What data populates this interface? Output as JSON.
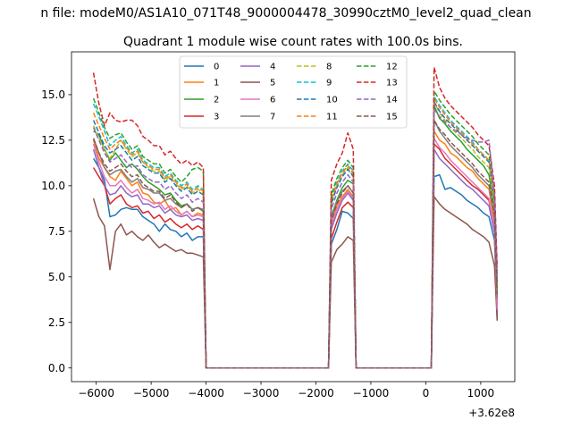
{
  "chart_data": {
    "type": "line",
    "suptitle": "n file: modeM0/AS1A10_071T48_9000004478_30990cztM0_level2_quad_clean",
    "title": "Quadrant 1 module wise count rates with 100.0s bins.",
    "xlabel": "",
    "ylabel": "",
    "x_offset_label": "+3.62e8",
    "xlim": [
      -6450,
      1620
    ],
    "ylim": [
      -0.75,
      17.35
    ],
    "x_ticks": [
      -6000,
      -5000,
      -4000,
      -3000,
      -2000,
      -1000,
      0,
      1000
    ],
    "x_tick_labels": [
      "−6000",
      "−5000",
      "−4000",
      "−3000",
      "−2000",
      "−1000",
      "0",
      "1000"
    ],
    "y_ticks": [
      0,
      2.5,
      5,
      7.5,
      10,
      12.5,
      15
    ],
    "y_tick_labels": [
      "0.0",
      "2.5",
      "5.0",
      "7.5",
      "10.0",
      "12.5",
      "15.0"
    ],
    "grid": false,
    "legend_position": "top-center",
    "legend_columns": 4,
    "segments": [
      {
        "start": -6050,
        "end": -4050,
        "bins": 21
      },
      {
        "start": -1720,
        "end": -1320,
        "bins": 5
      },
      {
        "start": 150,
        "end": 1250,
        "bins": 12
      }
    ],
    "series": [
      {
        "name": "0",
        "color": "#1f77b4",
        "dash": "solid",
        "values": [
          [
            11.5,
            11.0,
            10.3,
            8.3,
            8.4,
            8.7,
            8.8,
            8.7,
            8.7,
            8.3,
            8.1,
            7.9,
            7.5,
            7.9,
            7.6,
            7.5,
            7.2,
            7.4,
            7.0,
            7.2,
            7.2
          ],
          [
            6.8,
            7.6,
            8.6,
            8.5,
            8.2
          ],
          [
            10.5,
            10.6,
            9.8,
            9.9,
            9.7,
            9.5,
            9.2,
            9.0,
            8.8,
            8.5,
            8.3,
            7.0
          ]
        ]
      },
      {
        "name": "1",
        "color": "#ff7f0e",
        "dash": "solid",
        "values": [
          [
            12.5,
            11.5,
            11.0,
            10.5,
            10.3,
            10.8,
            10.4,
            10.0,
            10.2,
            9.6,
            9.5,
            9.1,
            9.0,
            9.2,
            8.7,
            8.8,
            8.4,
            8.6,
            8.3,
            8.5,
            8.4
          ],
          [
            7.9,
            8.9,
            9.4,
            9.8,
            9.4
          ],
          [
            13.0,
            12.5,
            12.3,
            11.8,
            11.6,
            11.3,
            11.0,
            10.8,
            10.4,
            10.1,
            9.8,
            8.0
          ]
        ]
      },
      {
        "name": "2",
        "color": "#2ca02c",
        "dash": "solid",
        "values": [
          [
            13.0,
            12.8,
            12.0,
            11.4,
            11.8,
            11.4,
            11.0,
            11.2,
            10.9,
            10.5,
            10.2,
            10.0,
            9.8,
            9.5,
            9.6,
            9.2,
            8.9,
            9.0,
            8.7,
            8.8,
            8.6
          ],
          [
            8.3,
            9.2,
            9.9,
            10.3,
            10.1
          ],
          [
            14.4,
            13.7,
            13.4,
            13.0,
            12.7,
            12.4,
            12.0,
            11.7,
            11.4,
            11.1,
            10.6,
            8.8
          ]
        ]
      },
      {
        "name": "3",
        "color": "#d62728",
        "dash": "solid",
        "values": [
          [
            11.0,
            10.5,
            10.0,
            9.0,
            9.3,
            9.5,
            9.0,
            8.8,
            8.9,
            8.5,
            8.6,
            8.2,
            8.4,
            8.0,
            8.2,
            7.9,
            7.7,
            7.9,
            7.6,
            7.8,
            7.6
          ],
          [
            7.1,
            8.0,
            8.8,
            9.1,
            8.8
          ],
          [
            12.3,
            12.0,
            11.5,
            11.2,
            10.9,
            10.6,
            10.3,
            10.0,
            9.8,
            9.5,
            9.2,
            7.6
          ]
        ]
      },
      {
        "name": "4",
        "color": "#9467bd",
        "dash": "solid",
        "values": [
          [
            12.0,
            11.0,
            10.0,
            9.5,
            9.6,
            10.0,
            9.6,
            9.4,
            9.5,
            9.0,
            9.0,
            8.8,
            8.9,
            8.5,
            8.7,
            8.4,
            8.3,
            8.4,
            8.1,
            8.2,
            8.1
          ],
          [
            7.6,
            8.5,
            9.2,
            9.6,
            9.2
          ],
          [
            12.0,
            11.5,
            11.2,
            10.9,
            10.6,
            10.3,
            10.0,
            9.8,
            9.5,
            9.2,
            8.9,
            7.4
          ]
        ]
      },
      {
        "name": "5",
        "color": "#8c564b",
        "dash": "solid",
        "values": [
          [
            9.3,
            8.3,
            7.8,
            5.4,
            7.5,
            7.9,
            7.3,
            7.5,
            7.2,
            7.0,
            7.3,
            6.9,
            6.6,
            6.8,
            6.6,
            6.4,
            6.5,
            6.3,
            6.3,
            6.2,
            6.1
          ],
          [
            5.8,
            6.5,
            6.8,
            7.2,
            7.0
          ],
          [
            9.4,
            9.0,
            8.7,
            8.5,
            8.3,
            8.1,
            7.9,
            7.6,
            7.4,
            7.2,
            6.9,
            5.6
          ]
        ]
      },
      {
        "name": "6",
        "color": "#e377c2",
        "dash": "solid",
        "values": [
          [
            12.3,
            11.3,
            10.5,
            10.0,
            10.0,
            10.3,
            9.9,
            9.6,
            9.8,
            9.3,
            9.2,
            9.0,
            9.1,
            8.7,
            8.9,
            8.6,
            8.4,
            8.6,
            8.3,
            8.4,
            8.3
          ],
          [
            7.8,
            8.7,
            9.3,
            9.7,
            9.3
          ],
          [
            12.6,
            12.1,
            11.8,
            11.4,
            11.1,
            10.8,
            10.5,
            10.2,
            9.9,
            9.6,
            9.3,
            7.7
          ]
        ]
      },
      {
        "name": "7",
        "color": "#7f7f7f",
        "dash": "solid",
        "values": [
          [
            12.6,
            11.8,
            11.0,
            10.6,
            10.8,
            10.9,
            10.5,
            10.2,
            10.4,
            9.9,
            9.8,
            9.6,
            9.6,
            9.2,
            9.3,
            9.0,
            8.8,
            9.0,
            8.7,
            8.8,
            8.7
          ],
          [
            8.2,
            9.1,
            9.7,
            10.0,
            9.6
          ],
          [
            13.6,
            13.0,
            12.6,
            12.2,
            11.9,
            11.6,
            11.3,
            11.0,
            10.6,
            10.3,
            10.0,
            8.3
          ]
        ]
      },
      {
        "name": "8",
        "color": "#bcbd22",
        "dash": "dashed",
        "values": [
          [
            13.3,
            12.6,
            12.0,
            11.5,
            12.0,
            12.5,
            12.0,
            11.6,
            11.8,
            11.3,
            11.0,
            10.8,
            10.8,
            10.3,
            10.5,
            10.1,
            9.8,
            10.0,
            9.6,
            9.8,
            9.6
          ],
          [
            9.1,
            10.0,
            10.6,
            11.0,
            10.6
          ],
          [
            14.6,
            14.0,
            13.6,
            13.2,
            12.9,
            12.6,
            12.3,
            12.0,
            11.6,
            11.3,
            11.0,
            9.0
          ]
        ]
      },
      {
        "name": "9",
        "color": "#17becf",
        "dash": "dashed",
        "values": [
          [
            14.5,
            13.8,
            13.0,
            12.2,
            12.5,
            12.7,
            12.2,
            11.8,
            12.0,
            11.4,
            11.2,
            11.0,
            11.0,
            10.5,
            10.7,
            10.3,
            10.0,
            10.2,
            9.8,
            10.0,
            9.8
          ],
          [
            9.3,
            10.2,
            10.8,
            11.2,
            10.8
          ],
          [
            14.9,
            14.4,
            14.0,
            13.6,
            13.3,
            13.0,
            12.7,
            12.4,
            12.0,
            11.7,
            11.4,
            9.3
          ]
        ]
      },
      {
        "name": "10",
        "color": "#1f77b4",
        "dash": "dashed",
        "values": [
          [
            13.6,
            12.9,
            12.2,
            11.8,
            12.0,
            12.2,
            11.8,
            11.4,
            11.6,
            11.1,
            10.9,
            10.7,
            10.7,
            10.2,
            10.4,
            10.0,
            9.7,
            9.9,
            9.5,
            9.7,
            9.5
          ],
          [
            9.0,
            9.9,
            10.5,
            10.9,
            10.5
          ],
          [
            14.6,
            14.1,
            13.7,
            13.4,
            13.1,
            12.8,
            12.5,
            12.2,
            11.9,
            11.6,
            11.3,
            9.2
          ]
        ]
      },
      {
        "name": "11",
        "color": "#ff7f0e",
        "dash": "dashed",
        "values": [
          [
            14.0,
            13.3,
            12.6,
            12.0,
            12.3,
            12.5,
            12.1,
            11.7,
            11.9,
            11.3,
            11.1,
            10.9,
            10.9,
            10.4,
            10.6,
            10.2,
            9.9,
            10.1,
            9.7,
            9.9,
            9.7
          ],
          [
            9.2,
            10.1,
            10.7,
            11.1,
            10.7
          ],
          [
            14.8,
            14.3,
            13.9,
            13.5,
            13.2,
            12.9,
            12.6,
            12.3,
            12.0,
            11.7,
            11.4,
            9.3
          ]
        ]
      },
      {
        "name": "12",
        "color": "#2ca02c",
        "dash": "dashed",
        "values": [
          [
            14.8,
            14.0,
            13.2,
            12.6,
            12.8,
            12.9,
            12.4,
            12.0,
            12.2,
            11.6,
            11.4,
            11.2,
            11.2,
            10.7,
            10.9,
            10.5,
            10.2,
            10.5,
            10.9,
            11.0,
            10.8
          ],
          [
            9.5,
            10.4,
            11.0,
            11.4,
            11.0
          ],
          [
            15.2,
            14.7,
            14.3,
            13.9,
            13.6,
            13.3,
            13.0,
            12.7,
            12.3,
            12.0,
            11.7,
            9.6
          ]
        ]
      },
      {
        "name": "13",
        "color": "#d62728",
        "dash": "dashed",
        "values": [
          [
            16.2,
            14.5,
            13.3,
            14.0,
            13.6,
            13.5,
            13.6,
            13.6,
            13.3,
            12.7,
            12.5,
            12.2,
            12.2,
            11.7,
            11.9,
            11.5,
            11.2,
            11.4,
            11.1,
            11.3,
            11.0
          ],
          [
            10.3,
            11.2,
            11.8,
            12.9,
            12.0
          ],
          [
            16.5,
            15.4,
            14.8,
            14.4,
            14.1,
            13.8,
            13.5,
            13.2,
            12.8,
            12.5,
            12.2,
            10.0
          ]
        ]
      },
      {
        "name": "14",
        "color": "#9467bd",
        "dash": "dashed",
        "values": [
          [
            13.2,
            12.5,
            11.8,
            11.3,
            11.5,
            11.7,
            11.3,
            11.0,
            11.1,
            10.6,
            10.4,
            10.2,
            10.2,
            9.8,
            10.0,
            9.6,
            9.3,
            9.5,
            9.1,
            9.3,
            9.1
          ],
          [
            8.7,
            9.6,
            10.2,
            10.6,
            10.2
          ],
          [
            14.2,
            13.8,
            13.5,
            13.2,
            13.0,
            12.8,
            12.6,
            12.5,
            12.4,
            12.4,
            12.5,
            9.4
          ]
        ]
      },
      {
        "name": "15",
        "color": "#8c564b",
        "dash": "dashed",
        "values": [
          [
            12.6,
            11.8,
            11.2,
            10.8,
            11.0,
            11.2,
            10.8,
            10.5,
            10.6,
            10.1,
            9.9,
            9.7,
            9.7,
            9.3,
            9.5,
            9.1,
            8.8,
            9.0,
            8.6,
            8.8,
            8.6
          ],
          [
            8.1,
            9.0,
            9.6,
            10.0,
            9.6
          ],
          [
            13.6,
            13.1,
            12.8,
            12.4,
            12.1,
            11.8,
            11.5,
            11.2,
            10.8,
            10.5,
            10.2,
            8.4
          ]
        ]
      }
    ]
  }
}
